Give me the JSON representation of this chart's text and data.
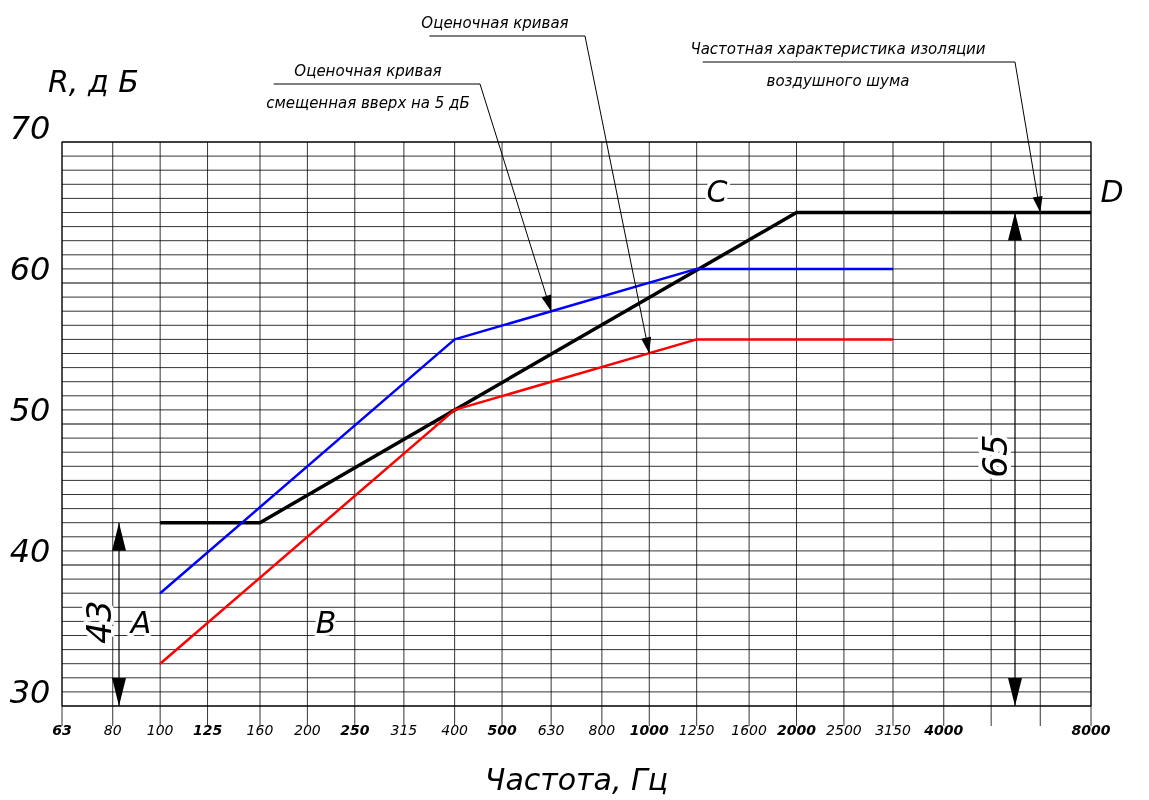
{
  "chart_data": {
    "type": "line",
    "xlabel": "Частота,  Гц",
    "ylabel": "R, д Б",
    "log": "x",
    "xlim": [
      63,
      8000
    ],
    "ylim": [
      30,
      70
    ],
    "xticks": [
      63,
      80,
      100,
      125,
      160,
      200,
      250,
      315,
      400,
      500,
      630,
      800,
      1000,
      1250,
      1600,
      2000,
      2500,
      3150,
      4000,
      {
        "value": 5000,
        "label": null
      },
      {
        "value": 6300,
        "label": null
      },
      8000
    ],
    "yticks": [
      30,
      {
        "value": 31,
        "label": null
      },
      {
        "value": 32,
        "label": null
      },
      {
        "value": 33,
        "label": null
      },
      {
        "value": 34,
        "label": null
      },
      {
        "value": 35,
        "label": null
      },
      {
        "value": 36,
        "label": null
      },
      {
        "value": 37,
        "label": null
      },
      {
        "value": 38,
        "label": null
      },
      {
        "value": 39,
        "label": null
      },
      40,
      {
        "value": 41,
        "label": null
      },
      {
        "value": 42,
        "label": null
      },
      {
        "value": 43,
        "label": null
      },
      {
        "value": 44,
        "label": null
      },
      {
        "value": 45,
        "label": null
      },
      {
        "value": 46,
        "label": null
      },
      {
        "value": 47,
        "label": null
      },
      {
        "value": 48,
        "label": null
      },
      {
        "value": 49,
        "label": null
      },
      50,
      {
        "value": 51,
        "label": null
      },
      {
        "value": 52,
        "label": null
      },
      {
        "value": 53,
        "label": null
      },
      {
        "value": 54,
        "label": null
      },
      {
        "value": 55,
        "label": null
      },
      {
        "value": 56,
        "label": null
      },
      {
        "value": 57,
        "label": null
      },
      {
        "value": 58,
        "label": null
      },
      {
        "value": 59,
        "label": null
      },
      60,
      {
        "value": 61,
        "label": null
      },
      {
        "value": 62,
        "label": null
      },
      {
        "value": 63,
        "label": null
      },
      {
        "value": 64,
        "label": null
      },
      {
        "value": 65,
        "label": null
      },
      {
        "value": 66,
        "label": null
      },
      {
        "value": 67,
        "label": null
      },
      {
        "value": 68,
        "label": null
      },
      {
        "value": 69,
        "label": null
      },
      70
    ],
    "grid": true,
    "marker": "none",
    "line_style": "solid",
    "series": [
      {
        "color": "#000000",
        "x": [
          100,
          160,
          400,
          2000,
          8000
        ],
        "values": [
          43,
          43,
          51,
          65,
          65
        ]
      },
      {
        "color": "#0000ff",
        "x": [
          100,
          400,
          1250,
          3150
        ],
        "values": [
          38,
          56,
          61,
          61
        ]
      },
      {
        "color": "#ff0000",
        "x": [
          100,
          400,
          1250,
          3150
        ],
        "values": [
          33,
          51,
          56,
          56
        ]
      }
    ],
    "annotations": [
      {
        "text": "Оценочная кривая\nсмещенная вверх на 5 дБ",
        "x": 630,
        "y": 58
      },
      {
        "text": "Оценочная кривая",
        "x": 1000,
        "y": 55
      },
      {
        "text": "Частотная характеристика изоляции\nвоздушного шума",
        "x": 6300,
        "y": 65
      },
      "A",
      "B",
      "C",
      "D",
      "43",
      "65"
    ]
  }
}
